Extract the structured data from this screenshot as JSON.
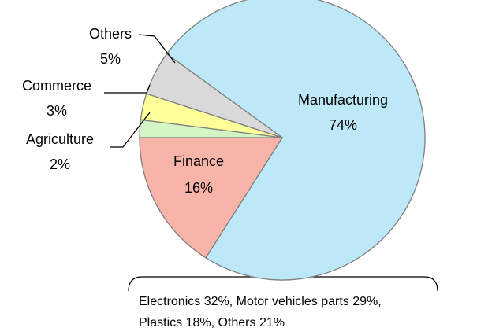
{
  "chart_data": {
    "type": "pie",
    "categories": [
      "Manufacturing",
      "Finance",
      "Agriculture",
      "Commerce",
      "Others"
    ],
    "values": [
      74,
      16,
      2,
      3,
      5
    ],
    "value_labels": [
      "74%",
      "16%",
      "2%",
      "3%",
      "5%"
    ],
    "colors": [
      "#bde8f8",
      "#f8b4a8",
      "#d4f5c4",
      "#ffff99",
      "#d9d9d9"
    ],
    "annotation": [
      "Electronics 32%, Motor vehicles parts 29%,",
      "Plastics 18%, Others 21%"
    ]
  }
}
